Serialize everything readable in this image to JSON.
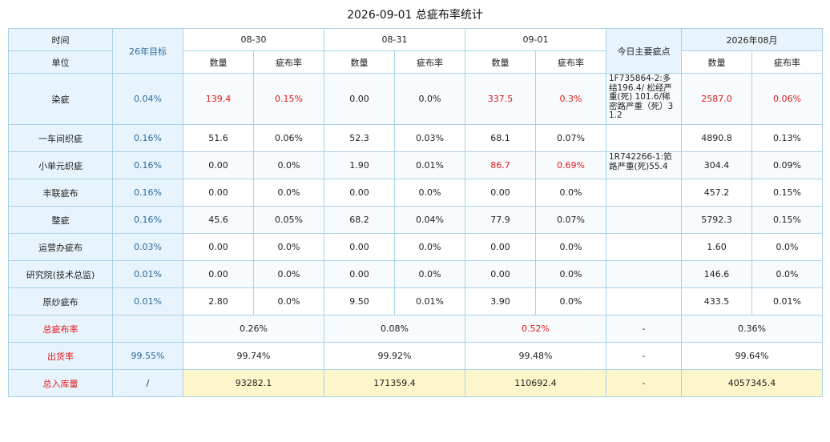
{
  "title": "2026-09-01 总疵布率统计",
  "header": {
    "time_label": "时间",
    "unit_label": "单位",
    "target_label": "26年目标",
    "dates": [
      "08-30",
      "08-31",
      "09-01"
    ],
    "main_defects_label": "今日主要疵点",
    "month_label": "2026年08月",
    "qty_label": "数量",
    "rate_label": "疵布率"
  },
  "rows": [
    {
      "unit": "染疵",
      "target": "0.04%",
      "d1q": "139.4",
      "d1r": "0.15%",
      "d2q": "0.00",
      "d2r": "0.0%",
      "d3q": "337.5",
      "d3r": "0.3%",
      "note": "1F735864-2:多结196.4/ 松经严重(死) 101.6/稀密路严重（死）31.2",
      "mq": "2587.0",
      "mr": "0.06%"
    },
    {
      "unit": "一车间织疵",
      "target": "0.16%",
      "d1q": "51.6",
      "d1r": "0.06%",
      "d2q": "52.3",
      "d2r": "0.03%",
      "d3q": "68.1",
      "d3r": "0.07%",
      "note": "",
      "mq": "4890.8",
      "mr": "0.13%"
    },
    {
      "unit": "小单元织疵",
      "target": "0.16%",
      "d1q": "0.00",
      "d1r": "0.0%",
      "d2q": "1.90",
      "d2r": "0.01%",
      "d3q": "86.7",
      "d3r": "0.69%",
      "note": "1R742266-1:筘路严重(死)55.4",
      "mq": "304.4",
      "mr": "0.09%"
    },
    {
      "unit": "丰联疵布",
      "target": "0.16%",
      "d1q": "0.00",
      "d1r": "0.0%",
      "d2q": "0.00",
      "d2r": "0.0%",
      "d3q": "0.00",
      "d3r": "0.0%",
      "note": "",
      "mq": "457.2",
      "mr": "0.15%"
    },
    {
      "unit": "整疵",
      "target": "0.16%",
      "d1q": "45.6",
      "d1r": "0.05%",
      "d2q": "68.2",
      "d2r": "0.04%",
      "d3q": "77.9",
      "d3r": "0.07%",
      "note": "",
      "mq": "5792.3",
      "mr": "0.15%"
    },
    {
      "unit": "运营办疵布",
      "target": "0.03%",
      "d1q": "0.00",
      "d1r": "0.0%",
      "d2q": "0.00",
      "d2r": "0.0%",
      "d3q": "0.00",
      "d3r": "0.0%",
      "note": "",
      "mq": "1.60",
      "mr": "0.0%"
    },
    {
      "unit": "研究院(技术总监)",
      "target": "0.01%",
      "d1q": "0.00",
      "d1r": "0.0%",
      "d2q": "0.00",
      "d2r": "0.0%",
      "d3q": "0.00",
      "d3r": "0.0%",
      "note": "",
      "mq": "146.6",
      "mr": "0.0%"
    },
    {
      "unit": "原纱疵布",
      "target": "0.01%",
      "d1q": "2.80",
      "d1r": "0.0%",
      "d2q": "9.50",
      "d2r": "0.01%",
      "d3q": "3.90",
      "d3r": "0.0%",
      "note": "",
      "mq": "433.5",
      "mr": "0.01%"
    }
  ],
  "summary": [
    {
      "label": "总疵布率",
      "target": "",
      "d1": "0.26%",
      "d2": "0.08%",
      "d3": "0.52%",
      "note": "-",
      "month": "0.36%"
    },
    {
      "label": "出货率",
      "target": "99.55%",
      "d1": "99.74%",
      "d2": "99.92%",
      "d3": "99.48%",
      "note": "-",
      "month": "99.64%"
    },
    {
      "label": "总入库量",
      "target": "/",
      "d1": "93282.1",
      "d2": "171359.4",
      "d3": "110692.4",
      "note": "-",
      "month": "4057345.4"
    }
  ],
  "colors": {
    "header_bg": "#e8f4fd",
    "border": "#a9d2e8",
    "highlight_red": "#e01818",
    "target_blue": "#2b6a9b",
    "total_row_bg": "#fdf6cb"
  }
}
